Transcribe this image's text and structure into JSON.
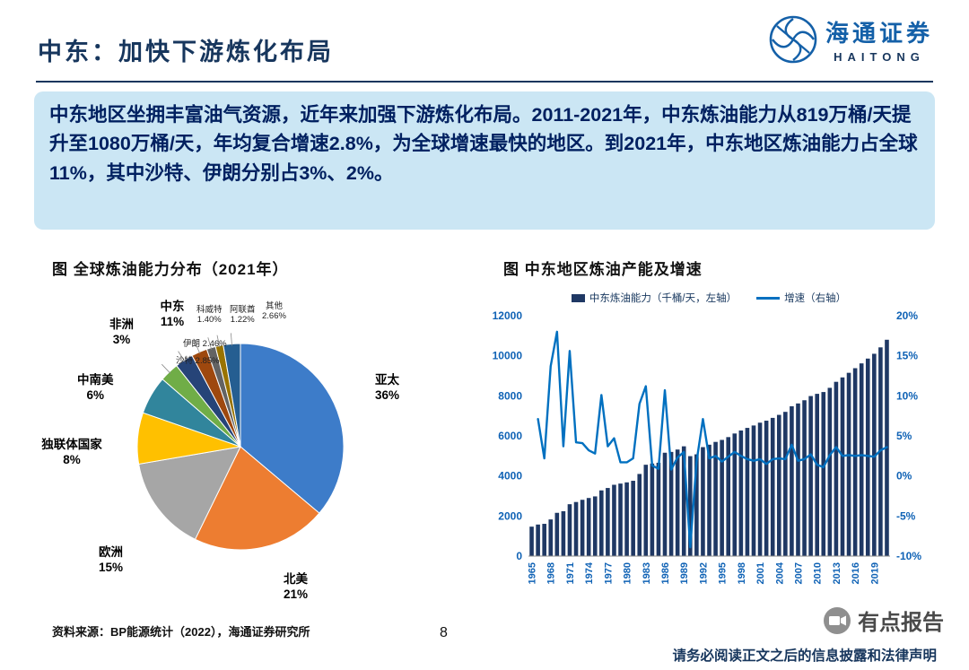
{
  "header": {
    "title": "中东：加快下游炼化布局",
    "logo_cn": "海通证券",
    "logo_en": "HAITONG"
  },
  "summary": {
    "text": "中东地区坐拥丰富油气资源，近年来加强下游炼化布局。2011-2021年，中东炼油能力从819万桶/天提升至1080万桶/天，年均复合增速2.8%，为全球增速最快的地区。到2021年，中东地区炼油能力占全球11%，其中沙特、伊朗分别占3%、2%。"
  },
  "chart_data": [
    {
      "type": "pie",
      "title": "图 全球炼油能力分布（2021年）",
      "group_label": {
        "name": "中东",
        "pct": "11%"
      },
      "slices": [
        {
          "name": "亚太",
          "value": 36,
          "pct": "36%",
          "color": "#3D7CC9"
        },
        {
          "name": "北美",
          "value": 21,
          "pct": "21%",
          "color": "#ED7D31"
        },
        {
          "name": "欧洲",
          "value": 15,
          "pct": "15%",
          "color": "#A6A6A6"
        },
        {
          "name": "独联体国家",
          "value": 8,
          "pct": "8%",
          "color": "#FFC000"
        },
        {
          "name": "中南美",
          "value": 6,
          "pct": "6%",
          "color": "#31859C"
        },
        {
          "name": "非洲",
          "value": 3,
          "pct": "3%",
          "color": "#70AD47"
        },
        {
          "name": "沙特",
          "value": 2.85,
          "pct": "2.85%",
          "color": "#264478"
        },
        {
          "name": "伊朗",
          "value": 2.46,
          "pct": "2.46%",
          "color": "#9E480E"
        },
        {
          "name": "科威特",
          "value": 1.4,
          "pct": "1.40%",
          "color": "#636363"
        },
        {
          "name": "阿联酋",
          "value": 1.22,
          "pct": "1.22%",
          "color": "#997300"
        },
        {
          "name": "其他",
          "value": 2.66,
          "pct": "2.66%",
          "color": "#255E91"
        }
      ]
    },
    {
      "type": "bar+line",
      "title": "图 中东地区炼油产能及增速",
      "legend": [
        {
          "label": "中东炼油能力（千桶/天，左轴）",
          "type": "bar",
          "color": "#1F3864"
        },
        {
          "label": "增速（右轴）",
          "type": "line",
          "color": "#0070C0"
        }
      ],
      "bar_color": "#1F3864",
      "line_color": "#0070C0",
      "left_axis": {
        "min": 0,
        "max": 12000,
        "ticks": [
          0,
          2000,
          4000,
          6000,
          8000,
          10000,
          12000
        ]
      },
      "right_axis": {
        "min": -10,
        "max": 20,
        "ticks": [
          -10,
          -5,
          0,
          5,
          10,
          15,
          20
        ],
        "suffix": "%"
      },
      "x_tick_years": [
        1965,
        1968,
        1971,
        1974,
        1977,
        1980,
        1983,
        1986,
        1989,
        1992,
        1995,
        1998,
        2001,
        2004,
        2007,
        2010,
        2013,
        2016,
        2019
      ],
      "years": [
        1965,
        1966,
        1967,
        1968,
        1969,
        1970,
        1971,
        1972,
        1973,
        1974,
        1975,
        1976,
        1977,
        1978,
        1979,
        1980,
        1981,
        1982,
        1983,
        1984,
        1985,
        1986,
        1987,
        1988,
        1989,
        1990,
        1991,
        1992,
        1993,
        1994,
        1995,
        1996,
        1997,
        1998,
        1999,
        2000,
        2001,
        2002,
        2003,
        2004,
        2005,
        2006,
        2007,
        2008,
        2009,
        2010,
        2011,
        2012,
        2013,
        2014,
        2015,
        2016,
        2017,
        2018,
        2019,
        2020,
        2021
      ],
      "capacity": [
        1470,
        1575,
        1610,
        1830,
        2160,
        2240,
        2590,
        2700,
        2810,
        2900,
        2980,
        3280,
        3400,
        3560,
        3620,
        3680,
        3760,
        4100,
        4560,
        4620,
        4660,
        5160,
        5200,
        5320,
        5480,
        4990,
        5080,
        5440,
        5560,
        5700,
        5800,
        5940,
        6120,
        6270,
        6400,
        6520,
        6660,
        6760,
        6900,
        7050,
        7200,
        7480,
        7620,
        7780,
        7990,
        8100,
        8190,
        8400,
        8700,
        8920,
        9150,
        9380,
        9620,
        9860,
        10100,
        10420,
        10800
      ],
      "growth": [
        null,
        7.1,
        2.2,
        13.7,
        18.0,
        3.7,
        15.6,
        4.2,
        4.1,
        3.2,
        2.8,
        10.1,
        3.7,
        4.7,
        1.7,
        1.7,
        2.2,
        9.0,
        11.2,
        1.3,
        0.9,
        10.7,
        0.8,
        2.3,
        3.0,
        -8.9,
        1.8,
        7.1,
        2.2,
        2.5,
        1.8,
        2.4,
        3.0,
        2.5,
        2.1,
        1.9,
        2.1,
        1.5,
        2.1,
        2.2,
        2.1,
        3.9,
        1.9,
        2.1,
        2.7,
        1.4,
        1.1,
        2.6,
        3.6,
        2.5,
        2.6,
        2.5,
        2.6,
        2.5,
        2.4,
        3.2,
        3.6
      ]
    }
  ],
  "footer": {
    "source": "资料来源：BP能源统计（2022），海通证券研究所",
    "page_number": "8",
    "disclaimer": "请务必阅读正文之后的信息披露和法律声明",
    "watermark": "有点报告"
  }
}
